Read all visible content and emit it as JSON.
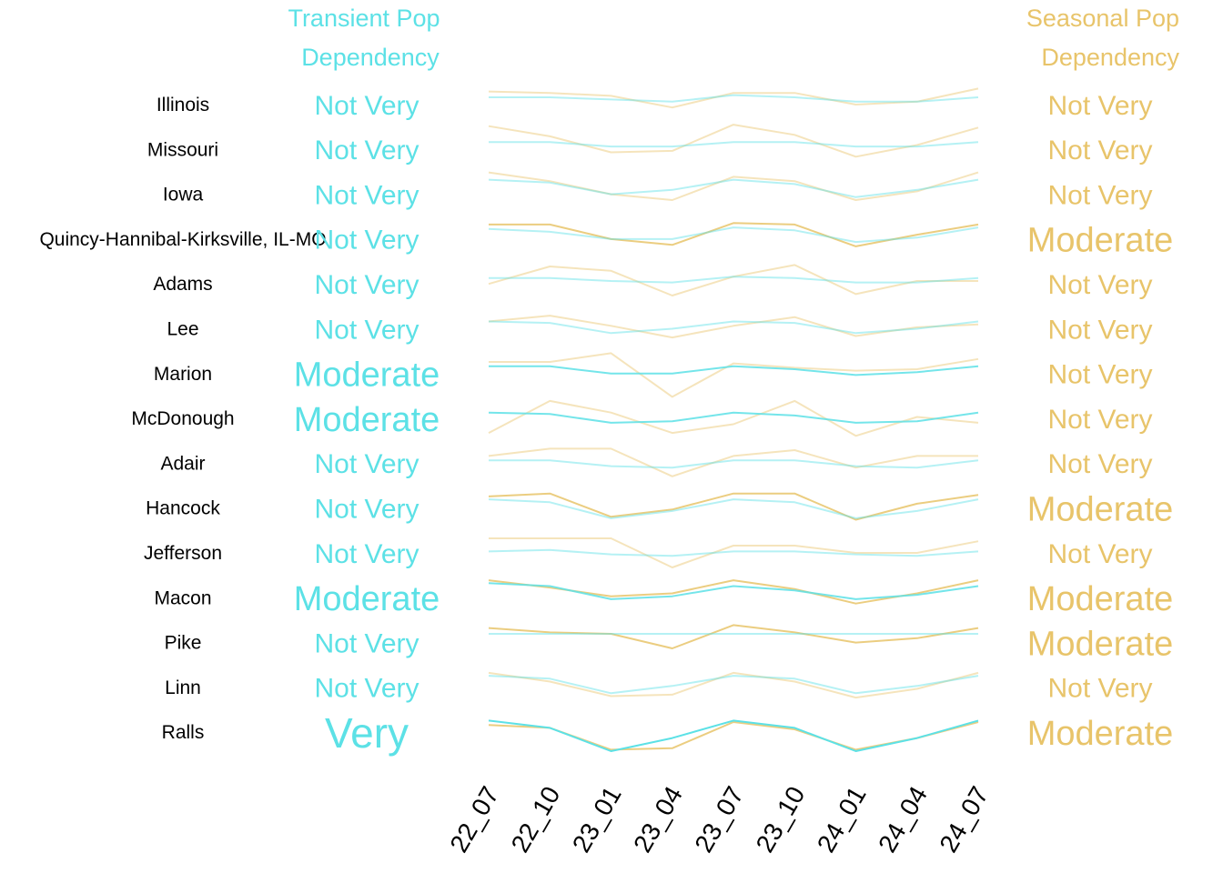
{
  "chart_data": {
    "type": "line",
    "left_header": [
      "Transient Pop",
      "Dependency"
    ],
    "right_header": [
      "Seasonal Pop",
      "Dependency"
    ],
    "x": [
      "22_07",
      "22_10",
      "23_01",
      "23_04",
      "23_07",
      "23_10",
      "24_01",
      "24_04",
      "24_07"
    ],
    "colors": {
      "transient": "#5ce1e6",
      "seasonal": "#e8c46a",
      "region_label": "#000000"
    },
    "rows": [
      {
        "region": "Illinois",
        "transient_label": "Not Very",
        "seasonal_label": "Not Very",
        "transient": [
          0.5,
          0.5,
          0.35,
          0.2,
          0.65,
          0.5,
          0.2,
          0.2,
          0.5
        ],
        "seasonal": [
          0.9,
          0.8,
          0.6,
          -0.2,
          0.8,
          0.8,
          0.0,
          0.2,
          1.1
        ]
      },
      {
        "region": "Missouri",
        "transient_label": "Not Very",
        "seasonal_label": "Not Very",
        "transient": [
          0.5,
          0.5,
          0.2,
          0.2,
          0.5,
          0.5,
          0.2,
          0.2,
          0.5
        ],
        "seasonal": [
          1.6,
          0.9,
          -0.2,
          -0.1,
          1.7,
          1.0,
          -0.5,
          0.3,
          1.5
        ]
      },
      {
        "region": "Iowa",
        "transient_label": "Not Very",
        "seasonal_label": "Not Very",
        "transient": [
          1.0,
          0.8,
          0.0,
          0.3,
          1.0,
          0.7,
          -0.2,
          0.3,
          1.0
        ],
        "seasonal": [
          1.5,
          0.9,
          0.0,
          -0.4,
          1.2,
          0.9,
          -0.4,
          0.2,
          1.5
        ]
      },
      {
        "region": "Quincy-Hannibal-Kirksville, IL-MO",
        "transient_label": "Not Very",
        "seasonal_label": "Moderate",
        "transient": [
          0.7,
          0.5,
          0.0,
          0.0,
          0.8,
          0.6,
          -0.2,
          0.1,
          0.8
        ],
        "seasonal": [
          1.0,
          1.0,
          0.0,
          -0.4,
          1.1,
          1.0,
          -0.5,
          0.3,
          1.0
        ]
      },
      {
        "region": "Adams",
        "transient_label": "Not Very",
        "seasonal_label": "Not Very",
        "transient": [
          0.4,
          0.4,
          0.2,
          0.1,
          0.5,
          0.4,
          0.1,
          0.1,
          0.4
        ],
        "seasonal": [
          0.0,
          1.2,
          0.9,
          -0.8,
          0.5,
          1.3,
          -0.7,
          0.2,
          0.2
        ]
      },
      {
        "region": "Lee",
        "transient_label": "Not Very",
        "seasonal_label": "Not Very",
        "transient": [
          0.5,
          0.4,
          -0.3,
          0.0,
          0.5,
          0.4,
          -0.3,
          0.0,
          0.5
        ],
        "seasonal": [
          0.5,
          0.9,
          0.2,
          -0.6,
          0.2,
          0.8,
          -0.5,
          0.1,
          0.3
        ]
      },
      {
        "region": "Marion",
        "transient_label": "Moderate",
        "seasonal_label": "Not Very",
        "transient": [
          0.5,
          0.5,
          0.0,
          0.0,
          0.5,
          0.3,
          -0.1,
          0.1,
          0.5
        ],
        "seasonal": [
          0.8,
          0.8,
          1.4,
          -1.6,
          0.7,
          0.4,
          0.2,
          0.3,
          1.0
        ]
      },
      {
        "region": "McDonough",
        "transient_label": "Moderate",
        "seasonal_label": "Not Very",
        "transient": [
          0.4,
          0.3,
          -0.3,
          -0.2,
          0.4,
          0.2,
          -0.3,
          -0.2,
          0.4
        ],
        "seasonal": [
          -1.0,
          1.2,
          0.4,
          -1.0,
          -0.4,
          1.2,
          -1.2,
          0.1,
          -0.3
        ]
      },
      {
        "region": "Adair",
        "transient_label": "Not Very",
        "seasonal_label": "Not Very",
        "transient": [
          0.2,
          0.2,
          -0.2,
          -0.3,
          0.2,
          0.2,
          -0.2,
          -0.3,
          0.2
        ],
        "seasonal": [
          0.5,
          1.0,
          1.0,
          -0.9,
          0.5,
          0.9,
          -0.3,
          0.5,
          0.5
        ]
      },
      {
        "region": "Hancock",
        "transient_label": "Not Very",
        "seasonal_label": "Moderate",
        "transient": [
          0.6,
          0.4,
          -0.7,
          -0.2,
          0.6,
          0.4,
          -0.7,
          -0.2,
          0.6
        ],
        "seasonal": [
          0.8,
          1.0,
          -0.6,
          -0.1,
          1.0,
          1.0,
          -0.8,
          0.3,
          0.9
        ]
      },
      {
        "region": "Jefferson",
        "transient_label": "Not Very",
        "seasonal_label": "Not Very",
        "transient": [
          0.1,
          0.2,
          -0.1,
          -0.2,
          0.1,
          0.1,
          -0.1,
          -0.2,
          0.1
        ],
        "seasonal": [
          1.0,
          1.0,
          1.0,
          -1.0,
          0.5,
          0.5,
          0.0,
          0.0,
          0.8
        ]
      },
      {
        "region": "Macon",
        "transient_label": "Moderate",
        "seasonal_label": "Moderate",
        "transient": [
          1.0,
          0.8,
          -0.1,
          0.1,
          0.8,
          0.5,
          -0.1,
          0.2,
          0.8
        ],
        "seasonal": [
          1.2,
          0.7,
          0.1,
          0.3,
          1.2,
          0.6,
          -0.4,
          0.3,
          1.2
        ]
      },
      {
        "region": "Pike",
        "transient_label": "Not Very",
        "seasonal_label": "Moderate",
        "transient": [
          0.6,
          0.6,
          0.6,
          0.6,
          0.6,
          0.6,
          0.6,
          0.6,
          0.6
        ],
        "seasonal": [
          1.0,
          0.7,
          0.6,
          -0.4,
          1.2,
          0.7,
          0.0,
          0.3,
          1.0
        ]
      },
      {
        "region": "Linn",
        "transient_label": "Not Very",
        "seasonal_label": "Not Very",
        "transient": [
          0.8,
          0.6,
          -0.4,
          0.1,
          0.8,
          0.6,
          -0.4,
          0.1,
          0.8
        ],
        "seasonal": [
          1.0,
          0.4,
          -0.6,
          -0.5,
          1.0,
          0.4,
          -0.7,
          -0.1,
          1.0
        ]
      },
      {
        "region": "Ralls",
        "transient_label": "Very",
        "seasonal_label": "Moderate",
        "transient": [
          0.8,
          0.3,
          -1.3,
          -0.4,
          0.8,
          0.3,
          -1.3,
          -0.4,
          0.8
        ],
        "seasonal": [
          0.5,
          0.3,
          -1.2,
          -1.1,
          0.7,
          0.2,
          -1.2,
          -0.4,
          0.7
        ]
      }
    ]
  }
}
